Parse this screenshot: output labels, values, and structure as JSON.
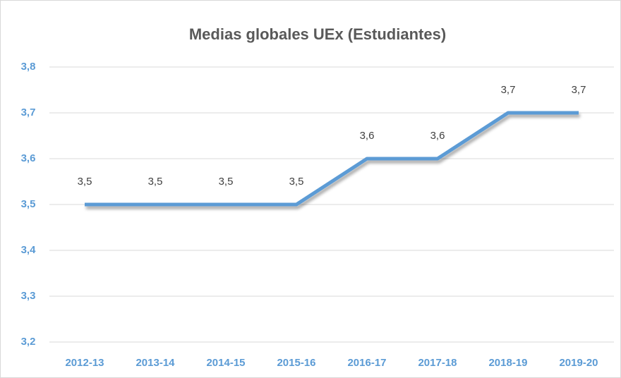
{
  "chart_data": {
    "type": "line",
    "title": "Medias globales UEx (Estudiantes)",
    "categories": [
      "2012-13",
      "2013-14",
      "2014-15",
      "2015-16",
      "2016-17",
      "2017-18",
      "2018-19",
      "2019-20"
    ],
    "values": [
      3.5,
      3.5,
      3.5,
      3.5,
      3.6,
      3.6,
      3.7,
      3.7
    ],
    "value_labels": [
      "3,5",
      "3,5",
      "3,5",
      "3,5",
      "3,6",
      "3,6",
      "3,7",
      "3,7"
    ],
    "color": "#5b9bd5",
    "ylim": [
      3.2,
      3.8
    ],
    "yticks": [
      {
        "value": 3.2,
        "label": "3,2"
      },
      {
        "value": 3.3,
        "label": "3,3"
      },
      {
        "value": 3.4,
        "label": "3,4"
      },
      {
        "value": 3.5,
        "label": "3,5"
      },
      {
        "value": 3.6,
        "label": "3,6"
      },
      {
        "value": 3.7,
        "label": "3,7"
      },
      {
        "value": 3.8,
        "label": "3,8"
      }
    ],
    "grid": true
  }
}
